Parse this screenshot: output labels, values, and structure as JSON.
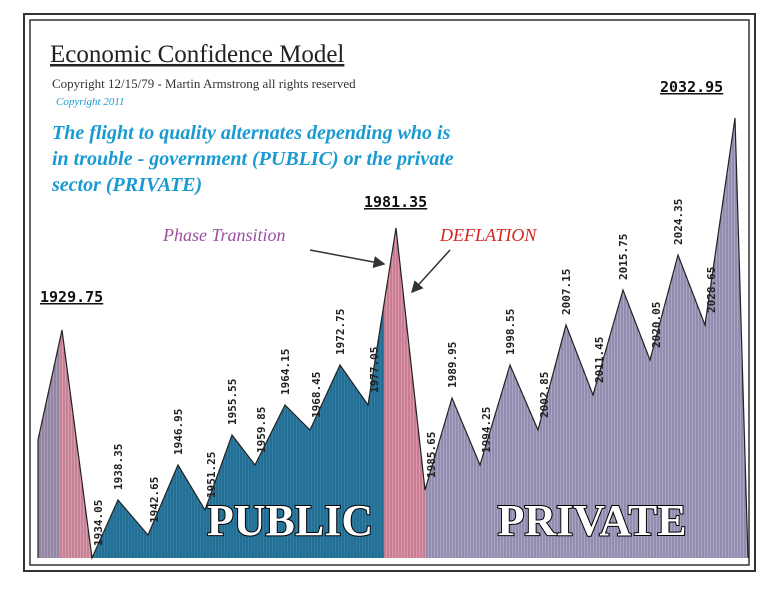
{
  "header": {
    "title": "Economic Confidence Model",
    "copyright": "Copyright 12/15/79 - Martin Armstrong all rights reserved",
    "copyright_update": "Copyright 2011",
    "subtitle_lines": [
      "The flight to quality alternates depending who is",
      "in trouble - government (PUBLIC) or the private",
      "sector (PRIVATE)"
    ]
  },
  "annotations": {
    "phase_transition": "Phase Transition",
    "deflation": "DEFLATION"
  },
  "regions": {
    "public": "PUBLIC",
    "private": "PRIVATE"
  },
  "turning_points": [
    {
      "label": "1929.75"
    },
    {
      "label": "1934.05"
    },
    {
      "label": "1938.35"
    },
    {
      "label": "1942.65"
    },
    {
      "label": "1946.95"
    },
    {
      "label": "1951.25"
    },
    {
      "label": "1955.55"
    },
    {
      "label": "1959.85"
    },
    {
      "label": "1964.15"
    },
    {
      "label": "1968.45"
    },
    {
      "label": "1972.75"
    },
    {
      "label": "1977.05"
    },
    {
      "label": "1981.35"
    },
    {
      "label": "1985.65"
    },
    {
      "label": "1989.95"
    },
    {
      "label": "1994.25"
    },
    {
      "label": "1998.55"
    },
    {
      "label": "2002.85"
    },
    {
      "label": "2007.15"
    },
    {
      "label": "2011.45"
    },
    {
      "label": "2015.75"
    },
    {
      "label": "2020.05"
    },
    {
      "label": "2024.35"
    },
    {
      "label": "2028.65"
    },
    {
      "label": "2032.95"
    }
  ]
}
